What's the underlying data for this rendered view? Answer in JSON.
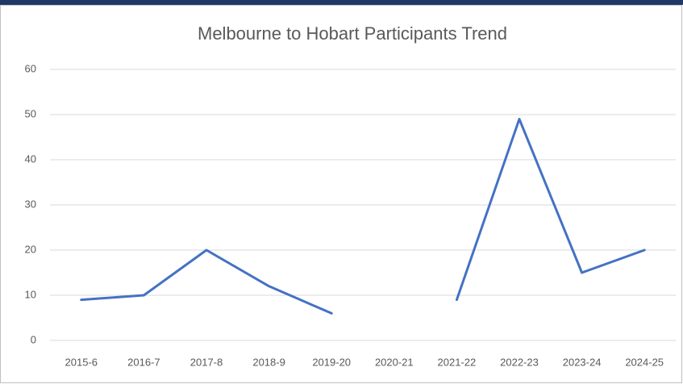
{
  "chart_data": {
    "type": "line",
    "title": "Melbourne to Hobart Participants Trend",
    "categories": [
      "2015-6",
      "2016-7",
      "2017-8",
      "2018-9",
      "2019-20",
      "2020-21",
      "2021-22",
      "2022-23",
      "2023-24",
      "2024-25"
    ],
    "series": [
      {
        "name": "Participants",
        "color": "#4472c4",
        "values": [
          9,
          10,
          20,
          12,
          6,
          null,
          9,
          49,
          15,
          20
        ]
      }
    ],
    "ylim": [
      0,
      60
    ],
    "yticks": [
      0,
      10,
      20,
      30,
      40,
      50,
      60
    ],
    "grid": true
  }
}
